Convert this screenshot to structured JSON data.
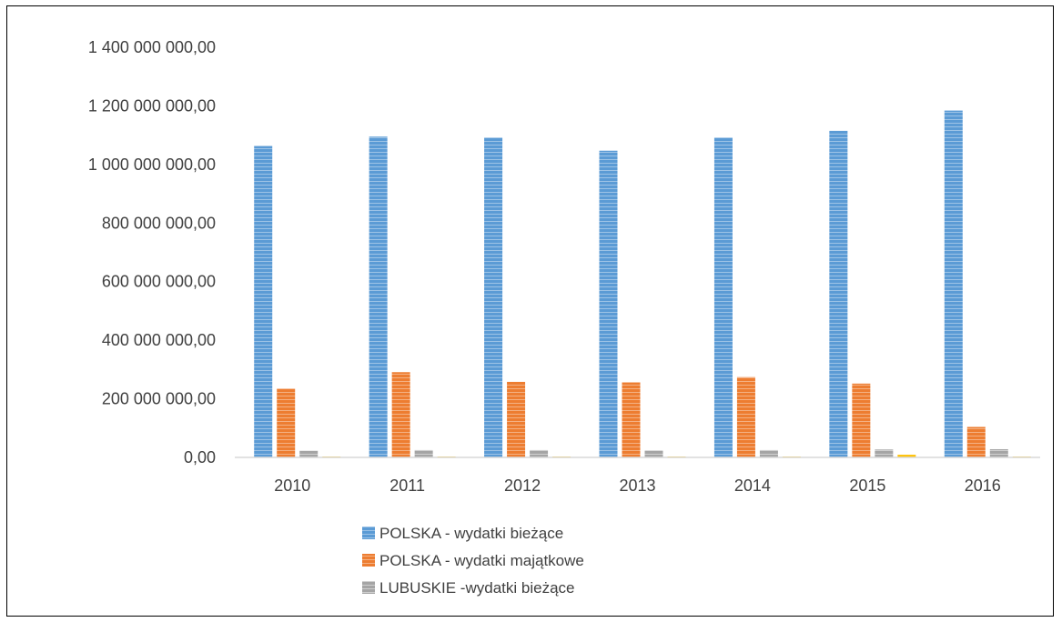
{
  "chart_data": {
    "type": "bar",
    "title": "",
    "xlabel": "",
    "ylabel": "",
    "categories": [
      "2010",
      "2011",
      "2012",
      "2013",
      "2014",
      "2015",
      "2016"
    ],
    "ylim": [
      0,
      1400000000
    ],
    "yticks": [
      0,
      200000000,
      400000000,
      600000000,
      800000000,
      1000000000,
      1200000000,
      1400000000
    ],
    "ytick_labels": [
      "0,00",
      "200 000 000,00",
      "400 000 000,00",
      "600 000 000,00",
      "800 000 000,00",
      "1 000 000 000,00",
      "1 200 000 000,00",
      "1 400 000 000,00"
    ],
    "grid": false,
    "legend_position": "bottom",
    "series": [
      {
        "name": "POLSKA - wydatki bieżące",
        "color": "#5b9bd5",
        "values": [
          1063000000,
          1095000000,
          1092000000,
          1047000000,
          1092000000,
          1115000000,
          1184000000
        ]
      },
      {
        "name": "POLSKA - wydatki majątkowe",
        "color": "#ed7d31",
        "values": [
          235000000,
          291000000,
          258000000,
          256000000,
          274000000,
          252000000,
          104000000
        ]
      },
      {
        "name": "LUBUSKIE -wydatki bieżące",
        "color": "#a5a5a5",
        "values": [
          23000000,
          25000000,
          25000000,
          24000000,
          25000000,
          27000000,
          28000000
        ]
      },
      {
        "name": "",
        "color": "#ffc000",
        "values": [
          3000000,
          3000000,
          3000000,
          3000000,
          3000000,
          9000000,
          3000000
        ]
      }
    ]
  }
}
